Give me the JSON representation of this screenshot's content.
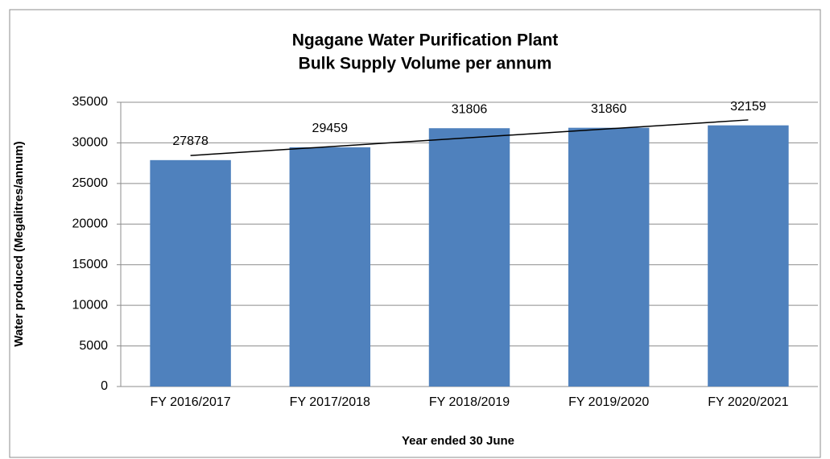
{
  "chart_data": {
    "type": "bar",
    "title": [
      "Ngagane Water Purification Plant",
      "Bulk Supply Volume per annum"
    ],
    "x_label": "Year ended 30 June",
    "y_label": "Water produced (Megalitres/annum)",
    "categories": [
      "FY 2016/2017",
      "FY 2017/2018",
      "FY 2018/2019",
      "FY 2019/2020",
      "FY 2020/2021"
    ],
    "values": [
      27878,
      29459,
      31806,
      31860,
      32159
    ],
    "color": "#4f81bd",
    "ylim": [
      0,
      35000
    ],
    "yticks": [
      0,
      5000,
      10000,
      15000,
      20000,
      25000,
      30000,
      35000
    ],
    "grid": true,
    "trendline": "linear"
  }
}
